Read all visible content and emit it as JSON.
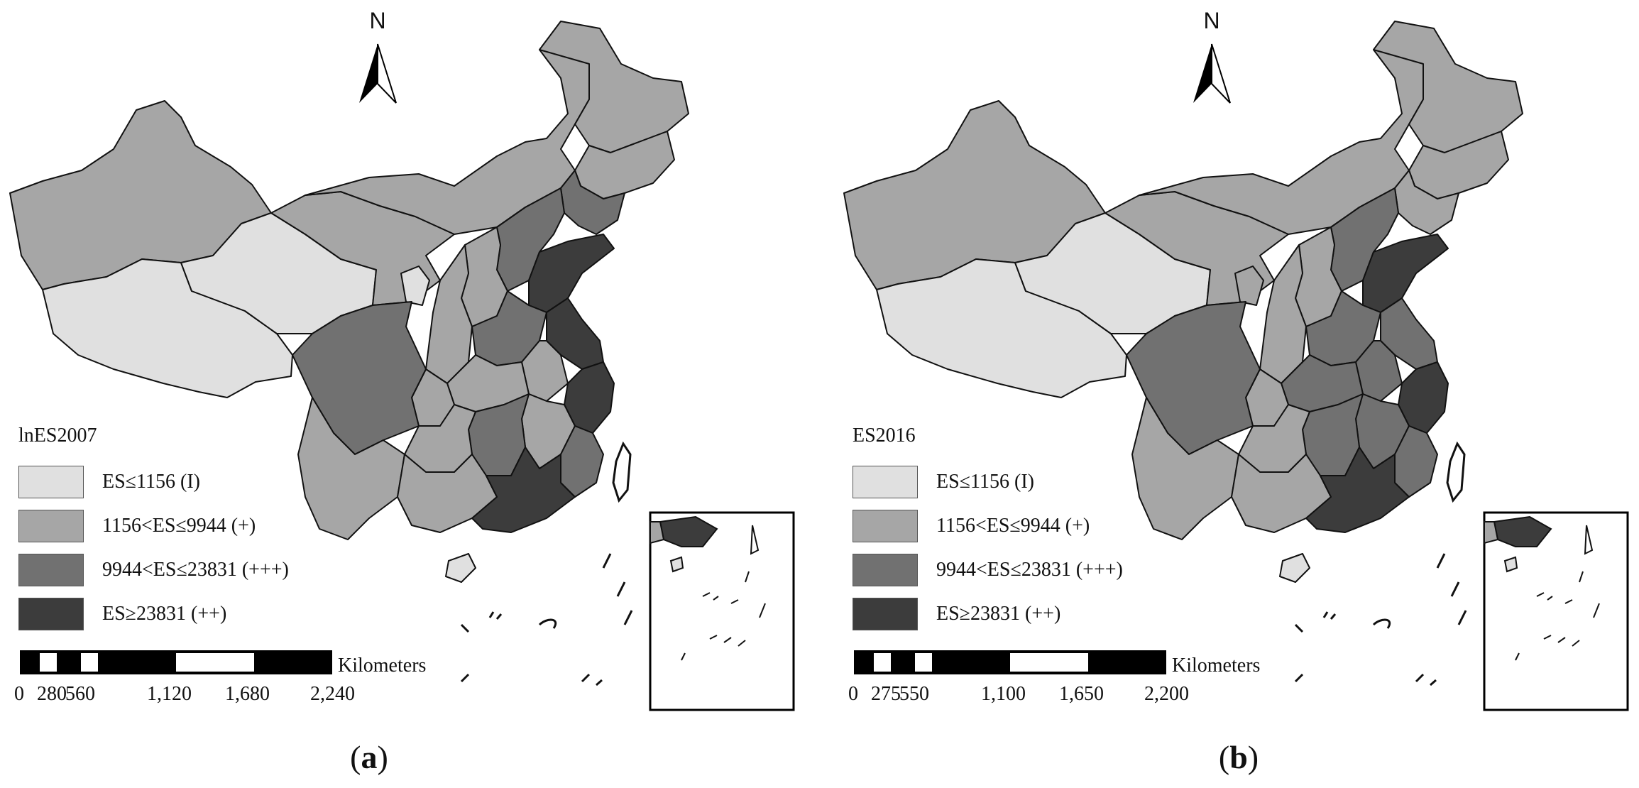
{
  "colors": {
    "class_I": "#e0e0e0",
    "class_plus": "#a6a6a6",
    "class_plusplusplus": "#717171",
    "class_plusplus": "#3c3c3c",
    "border": "#111111",
    "inset_border": "#000000"
  },
  "north_arrow": {
    "label": "N"
  },
  "panels": [
    {
      "id": "a",
      "legend_title": "lnES2007",
      "legend": [
        {
          "label": "ES≤1156 (I)",
          "color_key": "class_I"
        },
        {
          "label": "1156<ES≤9944 (+)",
          "color_key": "class_plus"
        },
        {
          "label": "9944<ES≤23831 (+++)",
          "color_key": "class_plusplusplus"
        },
        {
          "label": "ES≥23831 (++)",
          "color_key": "class_plusplus"
        }
      ],
      "scale_unit": "Kilometers",
      "scale_ticks": [
        "0",
        "280",
        "560",
        "1,120",
        "1,680",
        "2,240"
      ],
      "caption_letter": "a",
      "caption_open": "(",
      "caption_close": ")",
      "province_classes": {
        "xinjiang": "class_plus",
        "tibet": "class_I",
        "qinghai": "class_I",
        "gansu": "class_plus",
        "inner_mongolia": "class_plus",
        "heilongjiang": "class_plus",
        "jilin": "class_plus",
        "liaoning": "class_plusplusplus",
        "hebei": "class_plusplusplus",
        "shandong": "class_plusplus",
        "jiangsu": "class_plusplus",
        "zhejiang": "class_plusplus",
        "guangdong": "class_plusplus",
        "sichuan": "class_plusplusplus",
        "yunnan": "class_plus",
        "guizhou": "class_plus",
        "guangxi": "class_plus",
        "hunan": "class_plusplusplus",
        "hubei": "class_plus",
        "henan": "class_plusplusplus",
        "shaanxi": "class_plus",
        "shanxi": "class_plus",
        "ningxia": "class_I",
        "chongqing": "class_plus",
        "anhui": "class_plus",
        "jiangxi": "class_plus",
        "fujian": "class_plusplusplus",
        "hainan": "class_I"
      }
    },
    {
      "id": "b",
      "legend_title": "ES2016",
      "legend": [
        {
          "label": "ES≤1156 (I)",
          "color_key": "class_I"
        },
        {
          "label": "1156<ES≤9944 (+)",
          "color_key": "class_plus"
        },
        {
          "label": "9944<ES≤23831 (+++)",
          "color_key": "class_plusplusplus"
        },
        {
          "label": "ES≥23831 (++)",
          "color_key": "class_plusplus"
        }
      ],
      "scale_unit": "Kilometers",
      "scale_ticks": [
        "0",
        "275",
        "550",
        "1,100",
        "1,650",
        "2,200"
      ],
      "caption_letter": "b",
      "caption_open": "(",
      "caption_close": ")",
      "province_classes": {
        "xinjiang": "class_plus",
        "tibet": "class_I",
        "qinghai": "class_I",
        "gansu": "class_plus",
        "inner_mongolia": "class_plus",
        "heilongjiang": "class_plus",
        "jilin": "class_plus",
        "liaoning": "class_plus",
        "hebei": "class_plusplusplus",
        "shandong": "class_plusplus",
        "jiangsu": "class_plusplusplus",
        "zhejiang": "class_plusplus",
        "guangdong": "class_plusplus",
        "sichuan": "class_plusplusplus",
        "yunnan": "class_plus",
        "guizhou": "class_plus",
        "guangxi": "class_plus",
        "hunan": "class_plusplusplus",
        "hubei": "class_plusplusplus",
        "henan": "class_plusplusplus",
        "shaanxi": "class_plus",
        "shanxi": "class_plus",
        "ningxia": "class_plus",
        "chongqing": "class_plus",
        "anhui": "class_plusplusplus",
        "jiangxi": "class_plusplusplus",
        "fujian": "class_plusplusplus",
        "hainan": "class_I"
      }
    }
  ]
}
